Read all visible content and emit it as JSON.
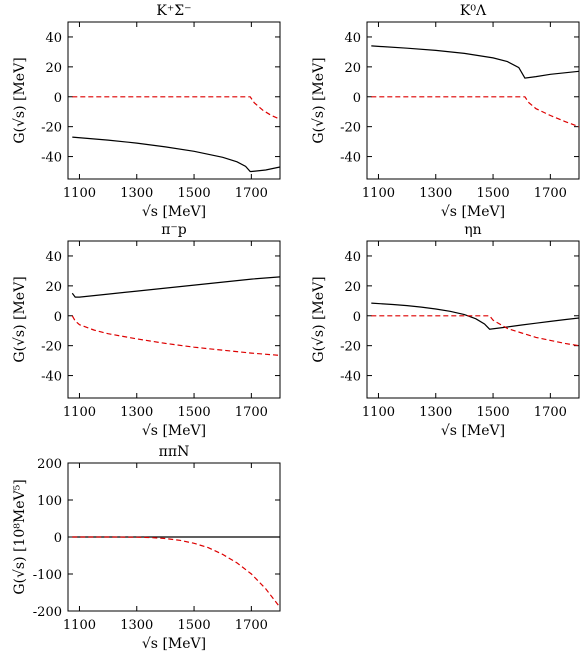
{
  "chart_data": [
    {
      "type": "line",
      "title": "K⁺Σ⁻",
      "xlabel": "√s  [MeV]",
      "ylabel": "G(√s) [MeV]",
      "xlim": [
        1060,
        1800
      ],
      "ylim": [
        -55,
        50
      ],
      "xticks": [
        1100,
        1300,
        1500,
        1700
      ],
      "yticks": [
        -40,
        -20,
        0,
        20,
        40
      ],
      "series": [
        {
          "style": "solid",
          "color": "#000000",
          "x": [
            1075,
            1200,
            1300,
            1400,
            1500,
            1600,
            1650,
            1680,
            1696,
            1700,
            1750,
            1800
          ],
          "y": [
            -27,
            -29,
            -31,
            -33.5,
            -36.5,
            -40.5,
            -43.5,
            -46.5,
            -50,
            -50,
            -49,
            -47
          ]
        },
        {
          "style": "dashed",
          "color": "#dd0000",
          "x": [
            1075,
            1200,
            1300,
            1400,
            1500,
            1600,
            1680,
            1696,
            1710,
            1740,
            1770,
            1800
          ],
          "y": [
            0,
            0,
            0,
            0,
            0,
            0,
            0,
            0,
            -4,
            -9,
            -12.5,
            -15
          ]
        }
      ]
    },
    {
      "type": "line",
      "title": "K⁰Λ",
      "xlabel": "√s  [MeV]",
      "ylabel": "G(√s) [MeV]",
      "xlim": [
        1060,
        1800
      ],
      "ylim": [
        -55,
        50
      ],
      "xticks": [
        1100,
        1300,
        1500,
        1700
      ],
      "yticks": [
        -40,
        -20,
        0,
        20,
        40
      ],
      "series": [
        {
          "style": "solid",
          "color": "#000000",
          "x": [
            1075,
            1200,
            1300,
            1400,
            1500,
            1550,
            1590,
            1611,
            1650,
            1700,
            1750,
            1800
          ],
          "y": [
            34,
            32.5,
            31,
            29,
            26,
            23.5,
            19.5,
            12.5,
            13.5,
            15,
            16,
            17
          ]
        },
        {
          "style": "dashed",
          "color": "#dd0000",
          "x": [
            1075,
            1200,
            1300,
            1400,
            1500,
            1600,
            1611,
            1625,
            1650,
            1700,
            1750,
            1800
          ],
          "y": [
            0,
            0,
            0,
            0,
            0,
            0,
            0,
            -4,
            -8,
            -12.5,
            -16.5,
            -20
          ]
        }
      ]
    },
    {
      "type": "line",
      "title": "π⁻p",
      "xlabel": "√s  [MeV]",
      "ylabel": "G(√s) [MeV]",
      "xlim": [
        1060,
        1800
      ],
      "ylim": [
        -55,
        50
      ],
      "xticks": [
        1100,
        1300,
        1500,
        1700
      ],
      "yticks": [
        -40,
        -20,
        0,
        20,
        40
      ],
      "series": [
        {
          "style": "solid",
          "color": "#000000",
          "x": [
            1075,
            1085,
            1100,
            1200,
            1300,
            1400,
            1500,
            1600,
            1700,
            1800
          ],
          "y": [
            15,
            12.5,
            12.5,
            14.5,
            16.5,
            18.5,
            20.5,
            22.5,
            24.5,
            26
          ]
        },
        {
          "style": "dashed",
          "color": "#dd0000",
          "x": [
            1075,
            1085,
            1100,
            1150,
            1200,
            1300,
            1400,
            1500,
            1600,
            1700,
            1800
          ],
          "y": [
            0,
            -3.5,
            -6,
            -9.5,
            -12,
            -15.5,
            -18.5,
            -21,
            -23,
            -25,
            -26.5
          ]
        }
      ]
    },
    {
      "type": "line",
      "title": "ηn",
      "xlabel": "√s  [MeV]",
      "ylabel": "G(√s) [MeV]",
      "xlim": [
        1060,
        1800
      ],
      "ylim": [
        -55,
        50
      ],
      "xticks": [
        1100,
        1300,
        1500,
        1700
      ],
      "yticks": [
        -40,
        -20,
        0,
        20,
        40
      ],
      "series": [
        {
          "style": "solid",
          "color": "#000000",
          "x": [
            1075,
            1150,
            1200,
            1250,
            1300,
            1350,
            1400,
            1440,
            1470,
            1488,
            1550,
            1600,
            1650,
            1700,
            1750,
            1800
          ],
          "y": [
            8.5,
            7.5,
            6.8,
            5.8,
            4.5,
            3,
            0.8,
            -2,
            -5.5,
            -9,
            -7.5,
            -6.2,
            -5,
            -3.8,
            -2.6,
            -1.5
          ]
        },
        {
          "style": "dashed",
          "color": "#dd0000",
          "x": [
            1075,
            1200,
            1300,
            1400,
            1470,
            1488,
            1500,
            1550,
            1600,
            1650,
            1700,
            1750,
            1800
          ],
          "y": [
            0,
            0,
            0,
            0,
            0,
            0,
            -3,
            -8.5,
            -11.5,
            -14.5,
            -16.5,
            -18.5,
            -20
          ]
        }
      ]
    },
    {
      "type": "line",
      "title": "ππN",
      "xlabel": "√s  [MeV]",
      "ylabel": "G(√s) [10⁸MeV⁵]",
      "xlim": [
        1060,
        1800
      ],
      "ylim": [
        -200,
        200
      ],
      "xticks": [
        1100,
        1300,
        1500,
        1700
      ],
      "yticks": [
        -200,
        -100,
        0,
        100,
        200
      ],
      "series": [
        {
          "style": "solid",
          "color": "#000000",
          "x": [
            1075,
            1800
          ],
          "y": [
            0,
            0
          ]
        },
        {
          "style": "dashed",
          "color": "#dd0000",
          "x": [
            1075,
            1200,
            1300,
            1350,
            1400,
            1450,
            1500,
            1550,
            1600,
            1650,
            1700,
            1750,
            1800
          ],
          "y": [
            0,
            0,
            -0.5,
            -1.5,
            -4,
            -9,
            -17,
            -29,
            -47,
            -70,
            -100,
            -140,
            -190
          ]
        }
      ]
    }
  ]
}
